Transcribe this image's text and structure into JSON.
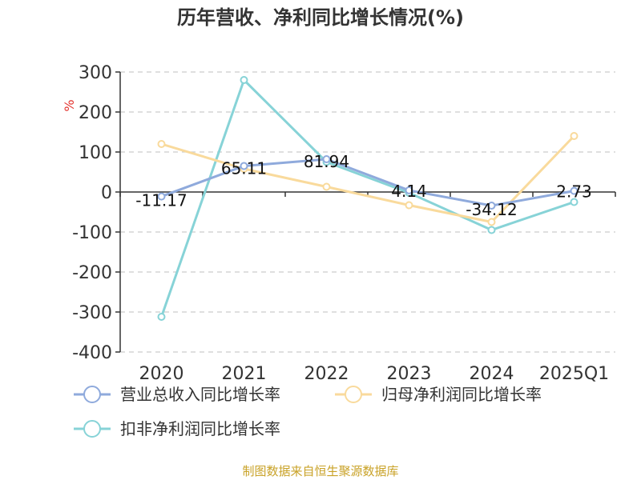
{
  "chart_data": {
    "type": "line",
    "title": "历年营收、净利同比增长情况(%)",
    "ylabel": "%",
    "xlabel": "",
    "categories": [
      "2020",
      "2021",
      "2022",
      "2023",
      "2024",
      "2025Q1"
    ],
    "ylim": [
      -400,
      300
    ],
    "yticks": [
      300,
      200,
      100,
      0,
      -100,
      -200,
      -300,
      -400
    ],
    "grid": true,
    "legend_position": "bottom",
    "series": [
      {
        "name": "营业总收入同比增长率",
        "color": "#8FAADC",
        "values": [
          -11.17,
          65.11,
          81.94,
          4.14,
          -34.12,
          2.73
        ],
        "labels": [
          "-11.17",
          "65.11",
          "81.94",
          "4.14",
          "-34.12",
          "2.73"
        ]
      },
      {
        "name": "归母净利润同比增长率",
        "color": "#F9DA9C",
        "values": [
          120,
          58,
          13,
          -33,
          -75,
          140
        ],
        "labels": []
      },
      {
        "name": "扣非净利润同比增长率",
        "color": "#87D3D7",
        "values": [
          -312,
          280,
          75,
          -2,
          -95,
          -25
        ],
        "labels": []
      }
    ]
  },
  "footer": {
    "source": "制图数据来自恒生聚源数据库"
  }
}
